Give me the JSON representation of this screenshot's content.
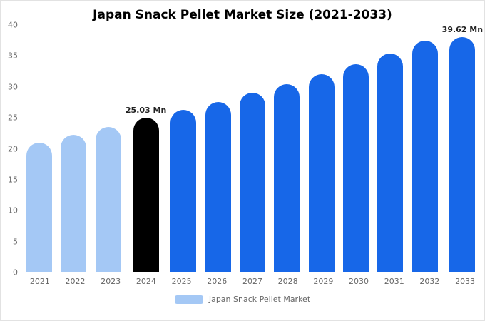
{
  "title": "Japan Snack Pellet Market Size (2021-2033)",
  "legend": {
    "label": "Japan Snack Pellet Market",
    "swatch_color": "#a4c8f5"
  },
  "colors": {
    "historical": "#a4c8f5",
    "base_year": "#000000",
    "forecast": "#1767e8"
  },
  "chart_data": {
    "type": "bar",
    "title": "Japan Snack Pellet Market Size (2021-2033)",
    "categories": [
      "2021",
      "2022",
      "2023",
      "2024",
      "2025",
      "2026",
      "2027",
      "2028",
      "2029",
      "2030",
      "2031",
      "2032",
      "2033"
    ],
    "values": [
      21.0,
      22.25,
      23.5,
      25.03,
      26.3,
      27.6,
      29.0,
      30.45,
      32.0,
      33.65,
      35.4,
      37.45,
      39.62
    ],
    "bar_colors": [
      "#a4c8f5",
      "#a4c8f5",
      "#a4c8f5",
      "#000000",
      "#1767e8",
      "#1767e8",
      "#1767e8",
      "#1767e8",
      "#1767e8",
      "#1767e8",
      "#1767e8",
      "#1767e8",
      "#1767e8"
    ],
    "annotations": [
      {
        "category": "2024",
        "text": "25.03 Mn"
      },
      {
        "category": "2033",
        "text": "39.62 Mn"
      }
    ],
    "unit": "Mn",
    "xlabel": "",
    "ylabel": "",
    "ylim": [
      0,
      40
    ],
    "yticks": [
      0,
      5,
      10,
      15,
      20,
      25,
      30,
      35,
      40
    ],
    "grid": false,
    "legend_position": "bottom",
    "legend_entries": [
      "Japan Snack Pellet Market"
    ]
  }
}
